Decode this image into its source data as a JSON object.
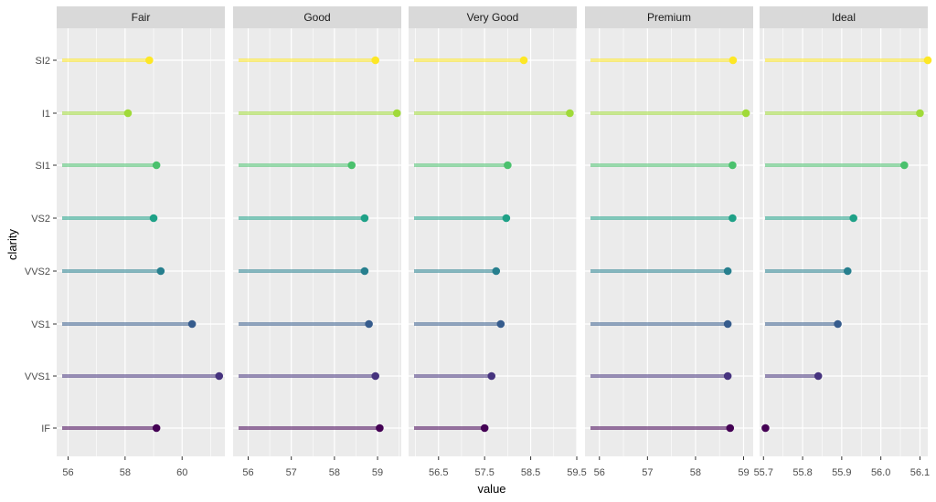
{
  "chart_data": {
    "type": "lollipop",
    "xlabel": "value",
    "ylabel": "clarity",
    "categories": [
      "IF",
      "VVS1",
      "VS1",
      "VVS2",
      "VS2",
      "SI1",
      "I1",
      "SI2"
    ],
    "category_colors": [
      "#440154",
      "#46337E",
      "#365C8D",
      "#277F8E",
      "#1FA187",
      "#4AC16D",
      "#A0DA39",
      "#FDE725"
    ],
    "panel_background": "#EBEBEB",
    "strip_background": "#D9D9D9",
    "grid_color": "#FFFFFF",
    "facets": [
      {
        "name": "Fair",
        "xlim": [
          55.6,
          61.5
        ],
        "ticks": [
          56,
          58,
          60
        ],
        "tick_labels": [
          "56",
          "58",
          "60"
        ],
        "values": [
          59.1,
          61.3,
          60.35,
          59.25,
          59.0,
          59.1,
          58.1,
          58.85
        ]
      },
      {
        "name": "Good",
        "xlim": [
          55.65,
          59.55
        ],
        "ticks": [
          56,
          57,
          58,
          59
        ],
        "tick_labels": [
          "56",
          "57",
          "58",
          "59"
        ],
        "values": [
          59.05,
          58.95,
          58.8,
          58.7,
          58.7,
          58.4,
          59.45,
          58.95
        ]
      },
      {
        "name": "Very Good",
        "xlim": [
          55.85,
          59.5
        ],
        "ticks": [
          56.5,
          57.5,
          58.5,
          59.5
        ],
        "tick_labels": [
          "56.5",
          "57.5",
          "58.5",
          "59.5"
        ],
        "values": [
          57.5,
          57.65,
          57.85,
          57.75,
          57.97,
          58.0,
          59.35,
          58.35
        ]
      },
      {
        "name": "Premium",
        "xlim": [
          55.7,
          59.2
        ],
        "ticks": [
          56,
          57,
          58,
          59
        ],
        "tick_labels": [
          "56",
          "57",
          "58",
          "59"
        ],
        "values": [
          58.72,
          58.67,
          58.67,
          58.67,
          58.77,
          58.77,
          59.05,
          58.78
        ]
      },
      {
        "name": "Ideal",
        "xlim": [
          55.69,
          56.12
        ],
        "ticks": [
          55.7,
          55.8,
          55.9,
          56.0,
          56.1
        ],
        "tick_labels": [
          "55.7",
          "55.8",
          "55.9",
          "56.0",
          "56.1"
        ],
        "values": [
          55.705,
          55.84,
          55.89,
          55.915,
          55.93,
          56.06,
          56.1,
          56.12
        ]
      }
    ]
  }
}
